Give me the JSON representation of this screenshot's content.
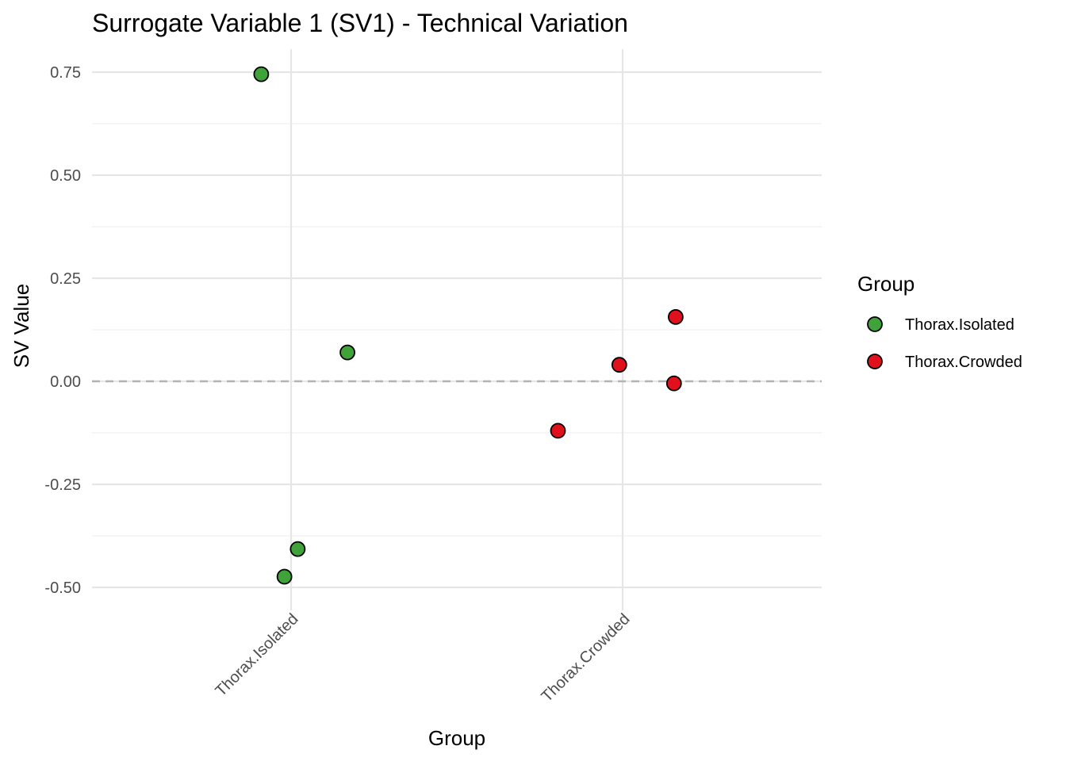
{
  "chart_data": {
    "type": "scatter",
    "title": "Surrogate Variable 1 (SV1) - Technical Variation",
    "xlabel": "Group",
    "ylabel": "SV Value",
    "categories": [
      "Thorax.Isolated",
      "Thorax.Crowded"
    ],
    "ylim": [
      -0.525,
      0.805
    ],
    "yticks": [
      0.75,
      0.5,
      0.25,
      0.0,
      -0.25,
      -0.5
    ],
    "ytick_labels": [
      "0.75",
      "0.50",
      "0.25",
      "0.00",
      "-0.25",
      "-0.50"
    ],
    "reference_line": {
      "y": 0.0,
      "style": "dashed"
    },
    "grid": true,
    "legend": {
      "title": "Group",
      "position": "right",
      "entries": [
        "Thorax.Isolated",
        "Thorax.Crowded"
      ]
    },
    "series": [
      {
        "name": "Thorax.Isolated",
        "color": "#3fa33a",
        "points": [
          {
            "x": "Thorax.Isolated",
            "jitter": -0.09,
            "y": 0.745
          },
          {
            "x": "Thorax.Isolated",
            "jitter": 0.17,
            "y": 0.07
          },
          {
            "x": "Thorax.Isolated",
            "jitter": 0.02,
            "y": -0.407
          },
          {
            "x": "Thorax.Isolated",
            "jitter": -0.02,
            "y": -0.474
          }
        ]
      },
      {
        "name": "Thorax.Crowded",
        "color": "#e0101c",
        "points": [
          {
            "x": "Thorax.Crowded",
            "jitter": 0.16,
            "y": 0.156
          },
          {
            "x": "Thorax.Crowded",
            "jitter": -0.01,
            "y": 0.04
          },
          {
            "x": "Thorax.Crowded",
            "jitter": 0.155,
            "y": -0.005
          },
          {
            "x": "Thorax.Crowded",
            "jitter": -0.195,
            "y": -0.12
          }
        ]
      }
    ]
  }
}
